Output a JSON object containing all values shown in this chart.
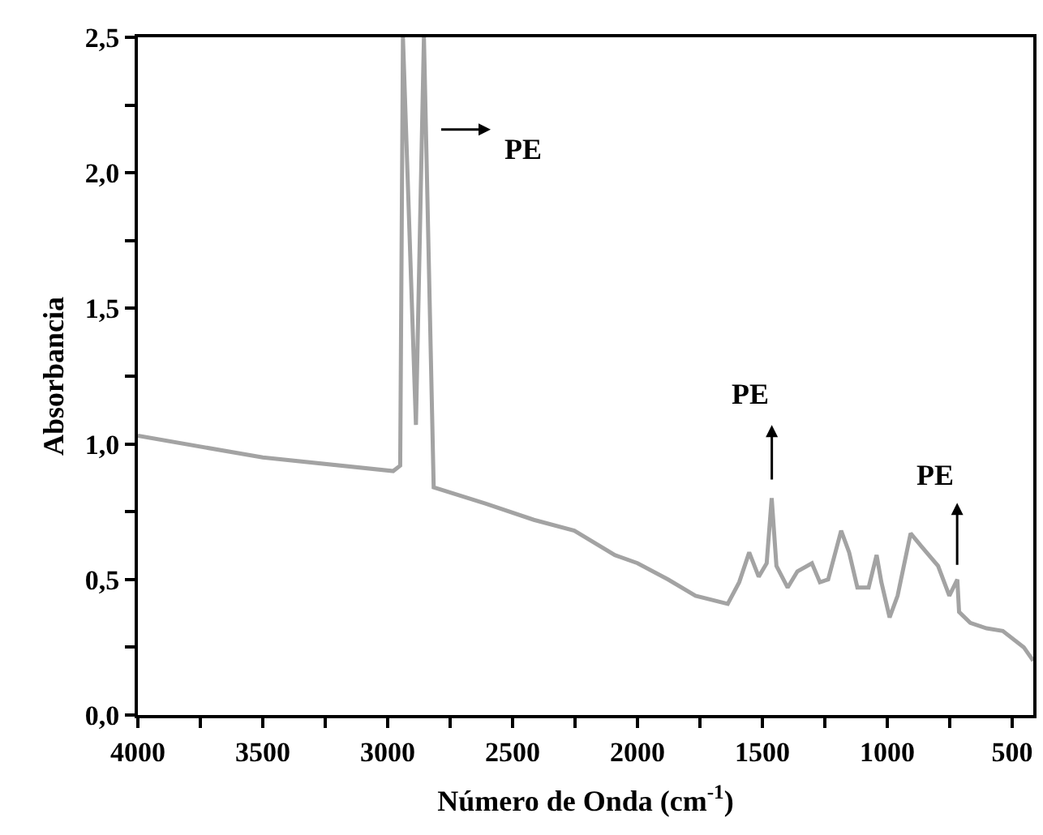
{
  "chart_data": {
    "type": "line",
    "xlabel": "Número de Onda (cm$^{-1}$)",
    "ylabel": "Absorbancia",
    "x": [
      4000,
      3500,
      2978,
      2950,
      2939,
      2887,
      2855,
      2816,
      2609,
      2415,
      2253,
      2091,
      2000,
      1878,
      1768,
      1639,
      1593,
      1553,
      1515,
      1483,
      1463,
      1444,
      1399,
      1360,
      1302,
      1270,
      1237,
      1185,
      1153,
      1120,
      1075,
      1043,
      1024,
      991,
      959,
      907,
      862,
      797,
      752,
      720,
      713,
      668,
      603,
      538,
      454,
      416
    ],
    "series": [
      {
        "color": "#a3a3a3",
        "values": [
          1.03,
          0.95,
          0.9,
          0.92,
          2.5,
          1.07,
          2.5,
          0.84,
          0.78,
          0.72,
          0.68,
          0.59,
          0.56,
          0.5,
          0.44,
          0.41,
          0.49,
          0.6,
          0.51,
          0.56,
          0.8,
          0.55,
          0.47,
          0.53,
          0.56,
          0.49,
          0.5,
          0.68,
          0.6,
          0.47,
          0.47,
          0.59,
          0.49,
          0.36,
          0.44,
          0.67,
          0.62,
          0.55,
          0.44,
          0.5,
          0.38,
          0.34,
          0.32,
          0.31,
          0.25,
          0.2
        ]
      }
    ],
    "xlim": [
      4000,
      416
    ],
    "ylim": [
      0,
      2.5
    ],
    "xticks": [
      4000,
      {
        "value": 3750,
        "label": null
      },
      3500,
      {
        "value": 3250,
        "label": null
      },
      3000,
      {
        "value": 2750,
        "label": null
      },
      2500,
      {
        "value": 2250,
        "label": null
      },
      2000,
      {
        "value": 1750,
        "label": null
      },
      1500,
      {
        "value": 1250,
        "label": null
      },
      1000,
      {
        "value": 750,
        "label": null
      },
      500
    ],
    "yticks": [
      {
        "value": 0,
        "label": "0,0"
      },
      {
        "value": 0.25,
        "label": null
      },
      {
        "value": 0.5,
        "label": "0,5"
      },
      {
        "value": 0.75,
        "label": null
      },
      {
        "value": 1.0,
        "label": "1,0"
      },
      {
        "value": 1.25,
        "label": null
      },
      {
        "value": 1.5,
        "label": "1,5"
      },
      {
        "value": 1.75,
        "label": null
      },
      {
        "value": 2.0,
        "label": "2,0"
      },
      {
        "value": 2.25,
        "label": null
      },
      {
        "value": 2.5,
        "label": "2,5"
      }
    ],
    "annotations": [
      "PE",
      "PE",
      "PE"
    ],
    "marker": "none",
    "line_style": "solid"
  }
}
